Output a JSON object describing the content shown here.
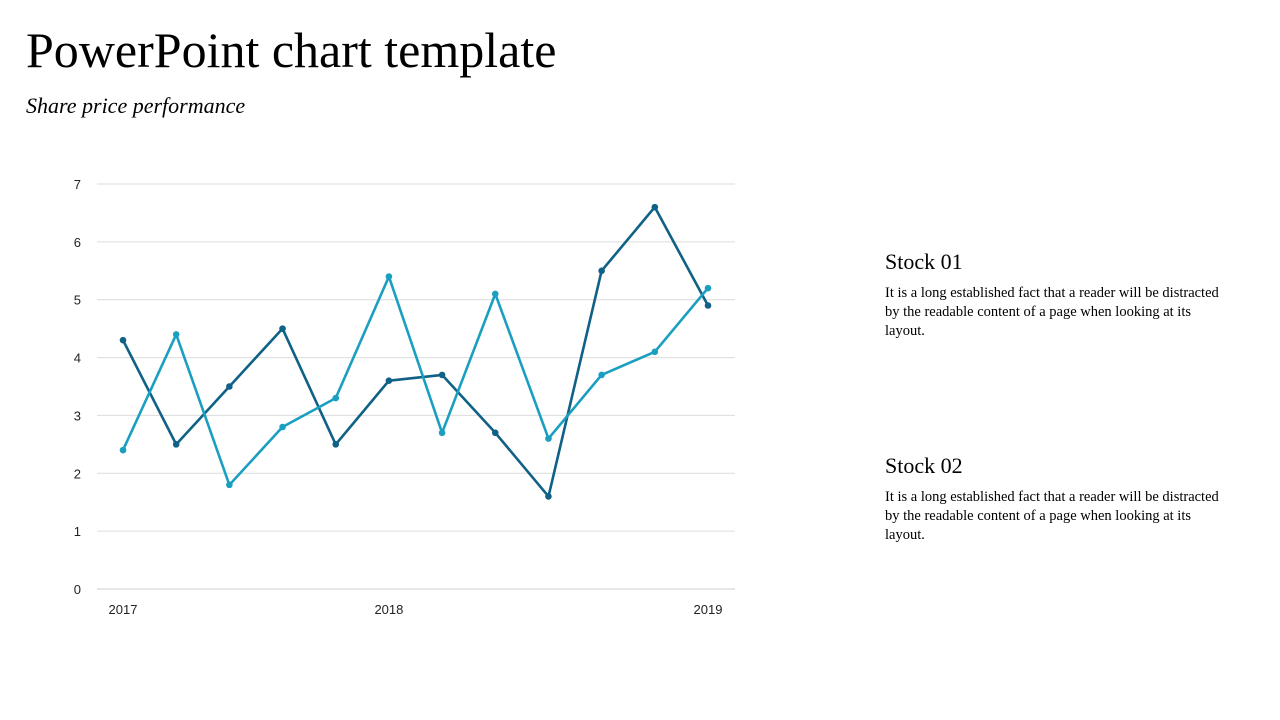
{
  "page": {
    "title": "PowerPoint chart template",
    "subtitle": "Share price performance"
  },
  "stocks": [
    {
      "title": "Stock 01",
      "text": "It is a long established fact that a reader will be distracted by the readable content of a page when looking at its layout."
    },
    {
      "title": "Stock 02",
      "text": "It is a long established fact that a reader will be distracted by the readable content of a page when looking at its layout."
    }
  ],
  "chart_data": {
    "type": "line",
    "title": "",
    "xlabel": "",
    "ylabel": "",
    "ylim": [
      0,
      7
    ],
    "yticks": [
      0,
      1,
      2,
      3,
      4,
      5,
      6,
      7
    ],
    "x_tick_labels": [
      {
        "index": 0,
        "label": "2017"
      },
      {
        "index": 5,
        "label": "2018"
      },
      {
        "index": 11,
        "label": "2019"
      }
    ],
    "grid": true,
    "legend": "none",
    "series": [
      {
        "color": "#0f6186",
        "values": [
          4.3,
          2.5,
          3.5,
          4.5,
          2.5,
          3.6,
          3.7,
          2.7,
          1.6,
          5.5,
          6.6,
          4.9
        ]
      },
      {
        "color": "#1a9fc0",
        "values": [
          2.4,
          4.4,
          1.8,
          2.8,
          3.3,
          5.4,
          2.7,
          5.1,
          2.6,
          3.7,
          4.1,
          5.2
        ]
      }
    ]
  }
}
